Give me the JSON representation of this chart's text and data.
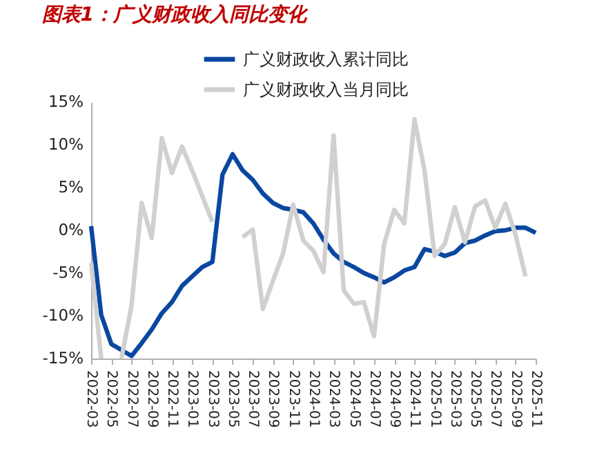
{
  "chart_data": {
    "type": "line",
    "title": "图表1：广义财政收入同比变化",
    "categories": [
      "2022-03",
      null,
      "2022-05",
      null,
      "2022-07",
      null,
      "2022-09",
      null,
      "2022-11",
      null,
      "2023-01",
      null,
      "2023-03",
      null,
      "2023-05",
      null,
      "2023-07",
      null,
      "2023-09",
      null,
      "2023-11",
      null,
      "2024-01",
      null,
      "2024-03",
      null,
      "2024-05",
      null,
      "2024-07",
      null,
      "2024-09",
      null,
      "2024-11",
      null,
      "2025-01",
      null,
      "2025-03",
      null,
      "2025-05",
      null,
      "2025-07",
      null,
      "2025-09",
      null,
      "2025-11"
    ],
    "series": [
      {
        "name": "广义财政收入累计同比",
        "color": "#0a47a0",
        "values": [
          0.5,
          -9.9,
          -13.3,
          -14.0,
          -14.7,
          -13.2,
          -11.6,
          -9.7,
          -8.4,
          -6.5,
          -5.4,
          -4.3,
          -3.7,
          6.5,
          8.9,
          7.0,
          5.9,
          4.3,
          3.2,
          2.6,
          2.4,
          2.1,
          0.8,
          -1.1,
          -2.7,
          -3.7,
          -4.3,
          -5.0,
          -5.5,
          -6.1,
          -5.5,
          -4.7,
          -4.3,
          -2.2,
          -2.5,
          -3.0,
          -2.6,
          -1.5,
          -1.2,
          -0.6,
          -0.1,
          0.0,
          0.3,
          0.3,
          -0.3
        ]
      },
      {
        "name": "广义财政收入当月同比",
        "color": "#d0d0d0",
        "values": [
          -3.8,
          -15,
          null,
          -15,
          -8.8,
          3.2,
          -0.9,
          10.8,
          6.7,
          9.8,
          7.0,
          4.0,
          1.0,
          null,
          null,
          -0.8,
          0.1,
          -9.2,
          -5.9,
          -2.7,
          3.0,
          -1.2,
          -2.4,
          -4.9,
          11.1,
          -7.0,
          -8.6,
          -8.4,
          -12.4,
          -1.6,
          2.4,
          0.8,
          13.0,
          7.0,
          -3.0,
          -1.6,
          2.7,
          -1.4,
          2.8,
          3.5,
          0.3,
          3.1,
          -0.5,
          -5.4,
          null
        ]
      }
    ],
    "ylim": [
      -15,
      15
    ],
    "yticks": [
      {
        "value": -15,
        "label": "-15%"
      },
      {
        "value": -10,
        "label": "-10%"
      },
      {
        "value": -5,
        "label": "-5%"
      },
      {
        "value": 0,
        "label": "0%"
      },
      {
        "value": 5,
        "label": "5%"
      },
      {
        "value": 10,
        "label": "10%"
      },
      {
        "value": 15,
        "label": "15%"
      }
    ],
    "grid": false,
    "legend": "top",
    "line_style": "solid",
    "marker": "none"
  }
}
